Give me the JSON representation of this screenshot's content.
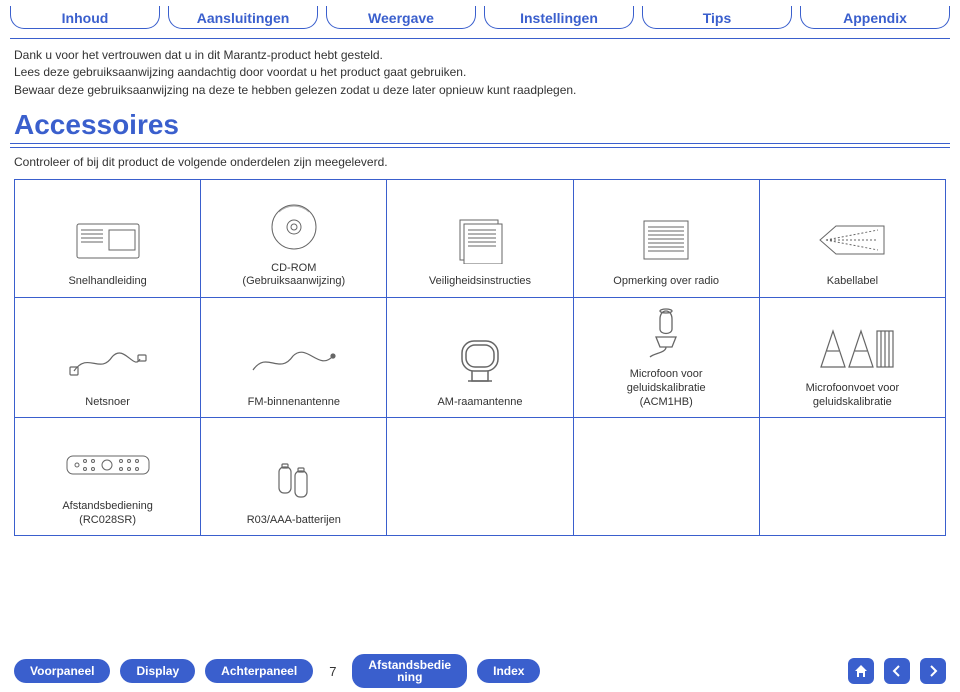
{
  "colors": {
    "accent": "#3a5fcd",
    "text": "#333333",
    "white": "#ffffff",
    "stroke": "#666666"
  },
  "topnav": {
    "items": [
      {
        "label": "Inhoud"
      },
      {
        "label": "Aansluitingen"
      },
      {
        "label": "Weergave"
      },
      {
        "label": "Instellingen"
      },
      {
        "label": "Tips"
      },
      {
        "label": "Appendix"
      }
    ]
  },
  "intro": {
    "line1": "Dank u voor het vertrouwen dat u in dit Marantz-product hebt gesteld.",
    "line2": "Lees deze gebruiksaanwijzing aandachtig door voordat u het product gaat gebruiken.",
    "line3": "Bewaar deze gebruiksaanwijzing na deze te hebben gelezen zodat u deze later opnieuw kunt raadplegen."
  },
  "section": {
    "title": "Accessoires",
    "subtitle": "Controleer of bij dit product de volgende onderdelen zijn meegeleverd."
  },
  "accessories": {
    "row1": [
      {
        "label": "Snelhandleiding"
      },
      {
        "label": "CD-ROM\n(Gebruiksaanwijzing)"
      },
      {
        "label": "Veiligheidsinstructies"
      },
      {
        "label": "Opmerking over radio"
      },
      {
        "label": "Kabellabel"
      }
    ],
    "row2": [
      {
        "label": "Netsnoer"
      },
      {
        "label": "FM-binnenantenne"
      },
      {
        "label": "AM-raamantenne"
      },
      {
        "label": "Microfoon voor\ngeluidskalibratie\n(ACM1HB)"
      },
      {
        "label": "Microfoonvoet voor\ngeluidskalibratie"
      }
    ],
    "row3": [
      {
        "label": "Afstandsbediening\n(RC028SR)"
      },
      {
        "label": "R03/AAA-batterijen"
      },
      {
        "label": ""
      },
      {
        "label": ""
      },
      {
        "label": ""
      }
    ]
  },
  "bottomnav": {
    "items": [
      {
        "label": "Voorpaneel"
      },
      {
        "label": "Display"
      },
      {
        "label": "Achterpaneel"
      }
    ],
    "page": "7",
    "items2": [
      {
        "label": "Afstandsbedie\nning"
      },
      {
        "label": "Index"
      }
    ]
  }
}
